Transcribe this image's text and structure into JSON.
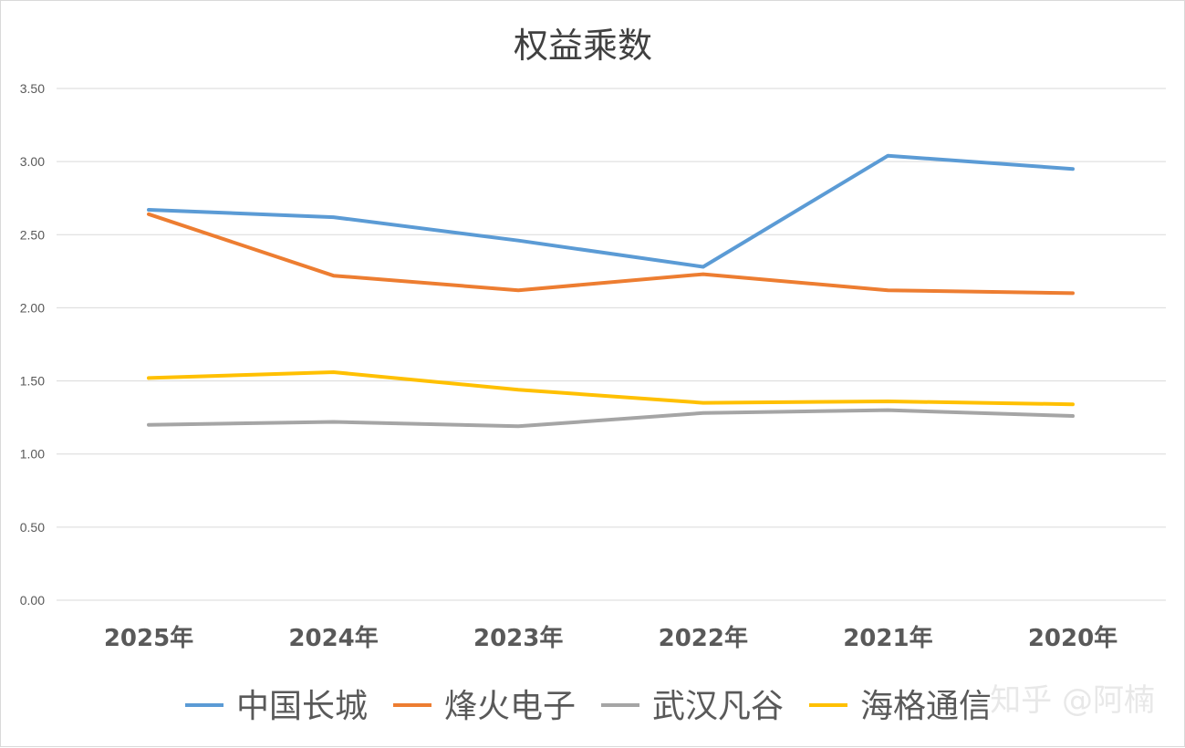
{
  "chart_data": {
    "type": "line",
    "title": "权益乘数",
    "categories": [
      "2025年",
      "2024年",
      "2023年",
      "2022年",
      "2021年",
      "2020年"
    ],
    "ylim": [
      0,
      3.5
    ],
    "yticks": [
      "0.00",
      "0.50",
      "1.00",
      "1.50",
      "2.00",
      "2.50",
      "3.00",
      "3.50"
    ],
    "grid": true,
    "legend_position": "bottom",
    "series": [
      {
        "name": "中国长城",
        "color": "#5b9bd5",
        "values": [
          2.67,
          2.62,
          2.46,
          2.28,
          3.04,
          2.95
        ]
      },
      {
        "name": "烽火电子",
        "color": "#ed7d31",
        "values": [
          2.64,
          2.22,
          2.12,
          2.23,
          2.12,
          2.1
        ]
      },
      {
        "name": "武汉凡谷",
        "color": "#a5a5a5",
        "values": [
          1.2,
          1.22,
          1.19,
          1.28,
          1.3,
          1.26
        ]
      },
      {
        "name": "海格通信",
        "color": "#ffc000",
        "values": [
          1.52,
          1.56,
          1.44,
          1.35,
          1.36,
          1.34
        ]
      }
    ]
  },
  "watermark": "知乎 @阿楠"
}
